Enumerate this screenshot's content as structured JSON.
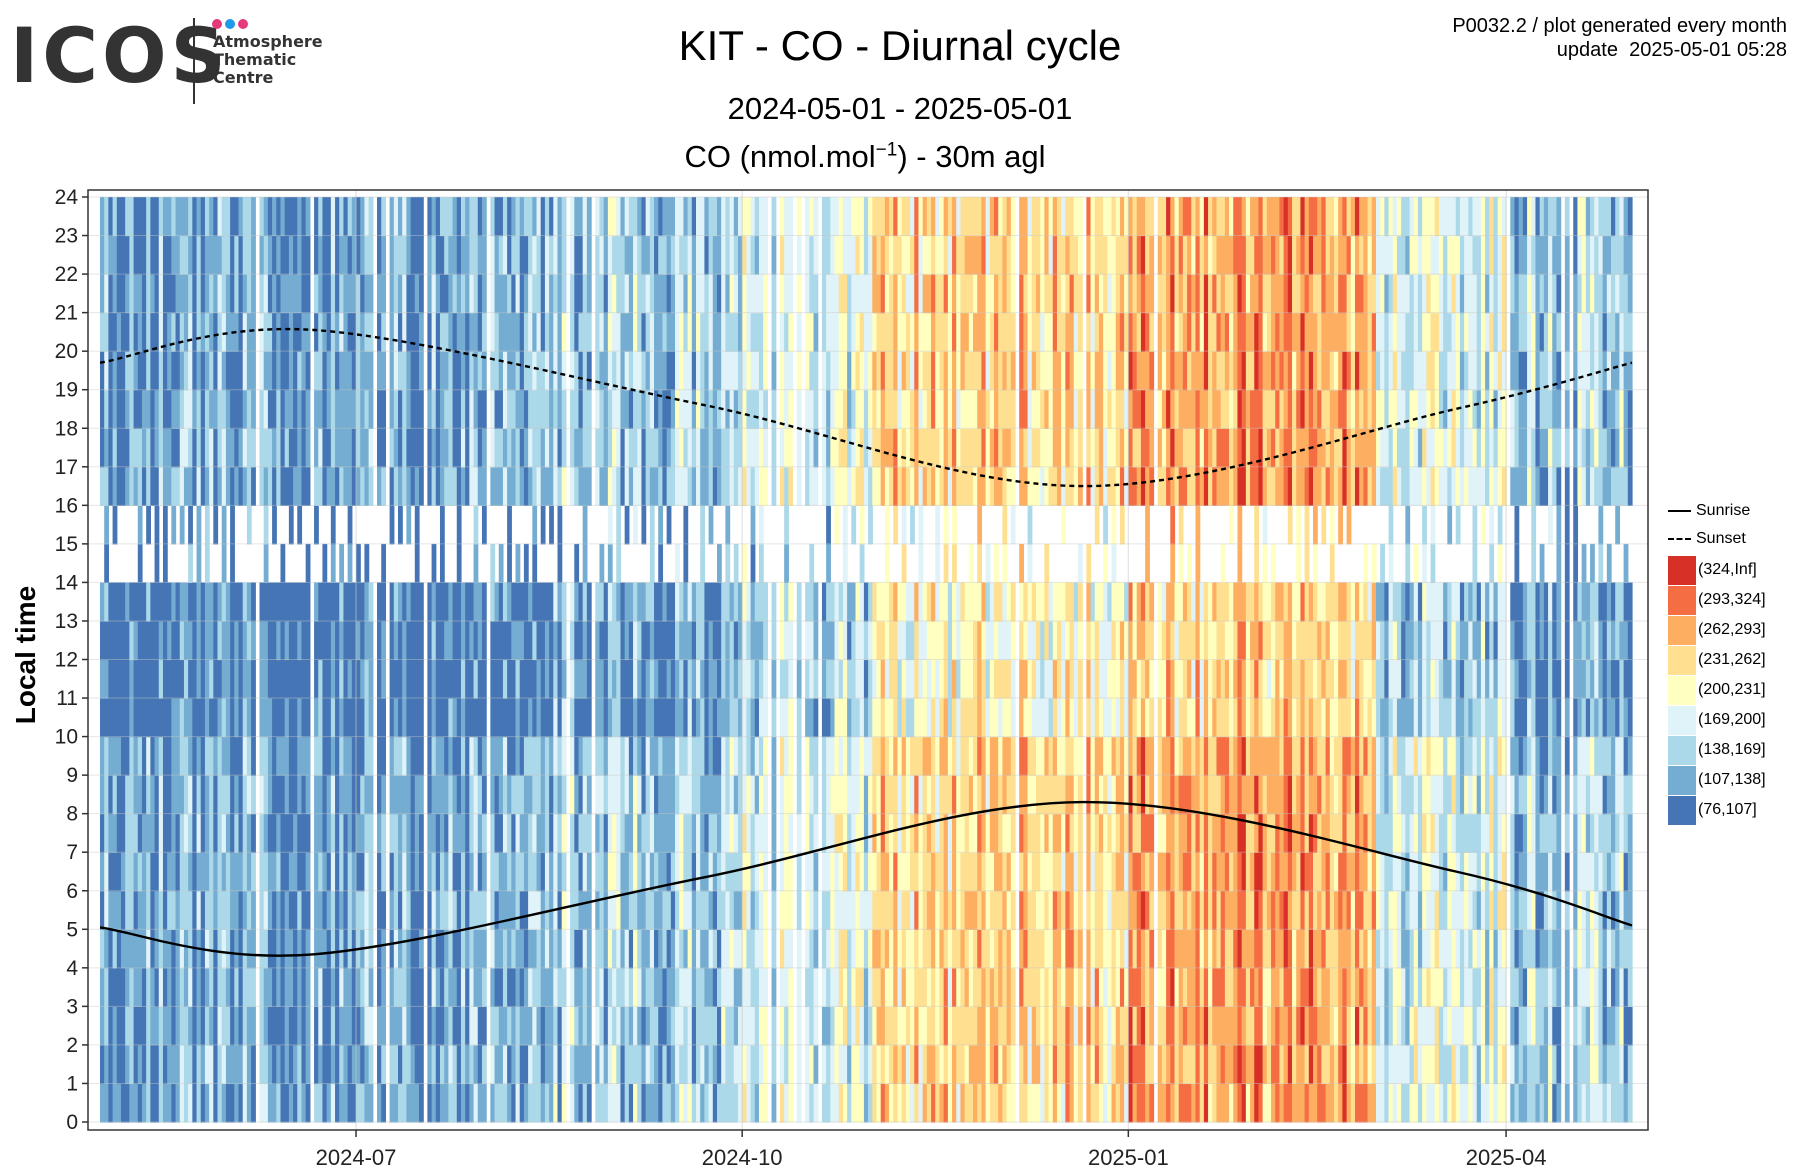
{
  "logo": {
    "wordmark": "ICOS",
    "lines": [
      "Atmosphere",
      "Thematic",
      "Centre"
    ],
    "dot_colors": [
      "#e6397a",
      "#1e9be8",
      "#e6397a"
    ]
  },
  "header": {
    "title": "KIT - CO - Diurnal cycle",
    "period": "2024-05-01 - 2025-05-01",
    "unit_prefix": "CO (nmol.mol",
    "unit_sup": "−1",
    "unit_suffix": ") - 30m agl",
    "info_line1": "P0032.2 / plot generated every month",
    "info_line2": "update  2025-05-01 05:28"
  },
  "chart_data": {
    "type": "heatmap",
    "title": "KIT - CO - Diurnal cycle",
    "subtitle": "2024-05-01 - 2025-05-01",
    "value_label": "CO (nmol.mol-1) - 30m agl",
    "ylabel": "Local time",
    "x_range": [
      "2024-05-01",
      "2025-05-01"
    ],
    "y_range": [
      0,
      24
    ],
    "x_ticks": [
      "2024-07",
      "2024-10",
      "2025-01",
      "2025-04"
    ],
    "y_ticks": [
      0,
      1,
      2,
      3,
      4,
      5,
      6,
      7,
      8,
      9,
      10,
      11,
      12,
      13,
      14,
      15,
      16,
      17,
      18,
      19,
      20,
      21,
      22,
      23,
      24
    ],
    "grid": true,
    "legend_position": "right",
    "bins": [
      {
        "label": "(324,Inf]",
        "color": "#d73027"
      },
      {
        "label": "(293,324]",
        "color": "#f46d43"
      },
      {
        "label": "(262,293]",
        "color": "#fdae61"
      },
      {
        "label": "(231,262]",
        "color": "#fee090"
      },
      {
        "label": "(200,231]",
        "color": "#ffffbf"
      },
      {
        "label": "(169,200]",
        "color": "#e0f3f8"
      },
      {
        "label": "(138,169]",
        "color": "#abd9e9"
      },
      {
        "label": "(107,138]",
        "color": "#74add1"
      },
      {
        "label": "(76,107]",
        "color": "#4575b4"
      }
    ],
    "monthly_typical_bin_index": [
      {
        "month": "2024-05",
        "bin": 7
      },
      {
        "month": "2024-06",
        "bin": 7
      },
      {
        "month": "2024-07",
        "bin": 7
      },
      {
        "month": "2024-08",
        "bin": 6
      },
      {
        "month": "2024-09",
        "bin": 6
      },
      {
        "month": "2024-10",
        "bin": 5
      },
      {
        "month": "2024-11",
        "bin": 3
      },
      {
        "month": "2024-12",
        "bin": 3
      },
      {
        "month": "2025-01",
        "bin": 2
      },
      {
        "month": "2025-02",
        "bin": 2
      },
      {
        "month": "2025-03",
        "bin": 5
      },
      {
        "month": "2025-04",
        "bin": 6
      }
    ],
    "data_gap_hours": [
      14,
      16
    ],
    "series": [
      {
        "name": "Sunrise",
        "style": "solid",
        "x": [
          "2024-05-01",
          "2024-06-21",
          "2024-09-22",
          "2024-12-21",
          "2025-03-20",
          "2025-05-01"
        ],
        "y": [
          5.05,
          4.35,
          6.35,
          8.3,
          6.5,
          5.1
        ]
      },
      {
        "name": "Sunset",
        "style": "dashed",
        "x": [
          "2024-05-01",
          "2024-06-21",
          "2024-09-22",
          "2024-12-21",
          "2025-03-20",
          "2025-05-01"
        ],
        "y": [
          19.7,
          20.55,
          18.6,
          16.5,
          18.5,
          19.7
        ]
      }
    ]
  }
}
